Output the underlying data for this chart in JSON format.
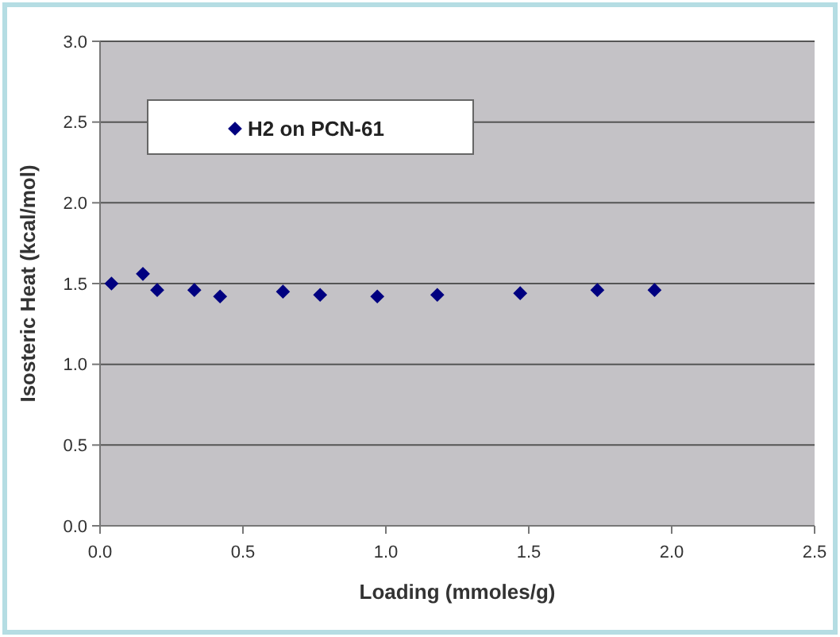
{
  "chart_data": {
    "type": "scatter",
    "xlabel": "Loading (mmoles/g)",
    "ylabel": "Isosteric Heat (kcal/mol)",
    "x": [
      0.04,
      0.15,
      0.2,
      0.33,
      0.42,
      0.64,
      0.77,
      0.97,
      1.18,
      1.47,
      1.74,
      1.94
    ],
    "series": [
      {
        "name": "H2 on PCN-61",
        "color": "#000080",
        "values": [
          1.5,
          1.56,
          1.46,
          1.46,
          1.42,
          1.45,
          1.43,
          1.42,
          1.43,
          1.44,
          1.46,
          1.46
        ]
      }
    ],
    "xlim": [
      0,
      2.5
    ],
    "xticks": [
      {
        "value": 0,
        "label": "0.0"
      },
      0.5,
      {
        "value": 1,
        "label": "1.0"
      },
      1.5,
      {
        "value": 2,
        "label": "2.0"
      },
      2.5
    ],
    "ylim": [
      0,
      3
    ],
    "yticks": [
      {
        "value": 0,
        "label": "0.0"
      },
      0.5,
      {
        "value": 1,
        "label": "1.0"
      },
      1.5,
      {
        "value": 2,
        "label": "2.0"
      },
      2.5,
      {
        "value": 3,
        "label": "3.0"
      }
    ],
    "grid": "y",
    "legend": "top left",
    "marker": "diamond"
  }
}
